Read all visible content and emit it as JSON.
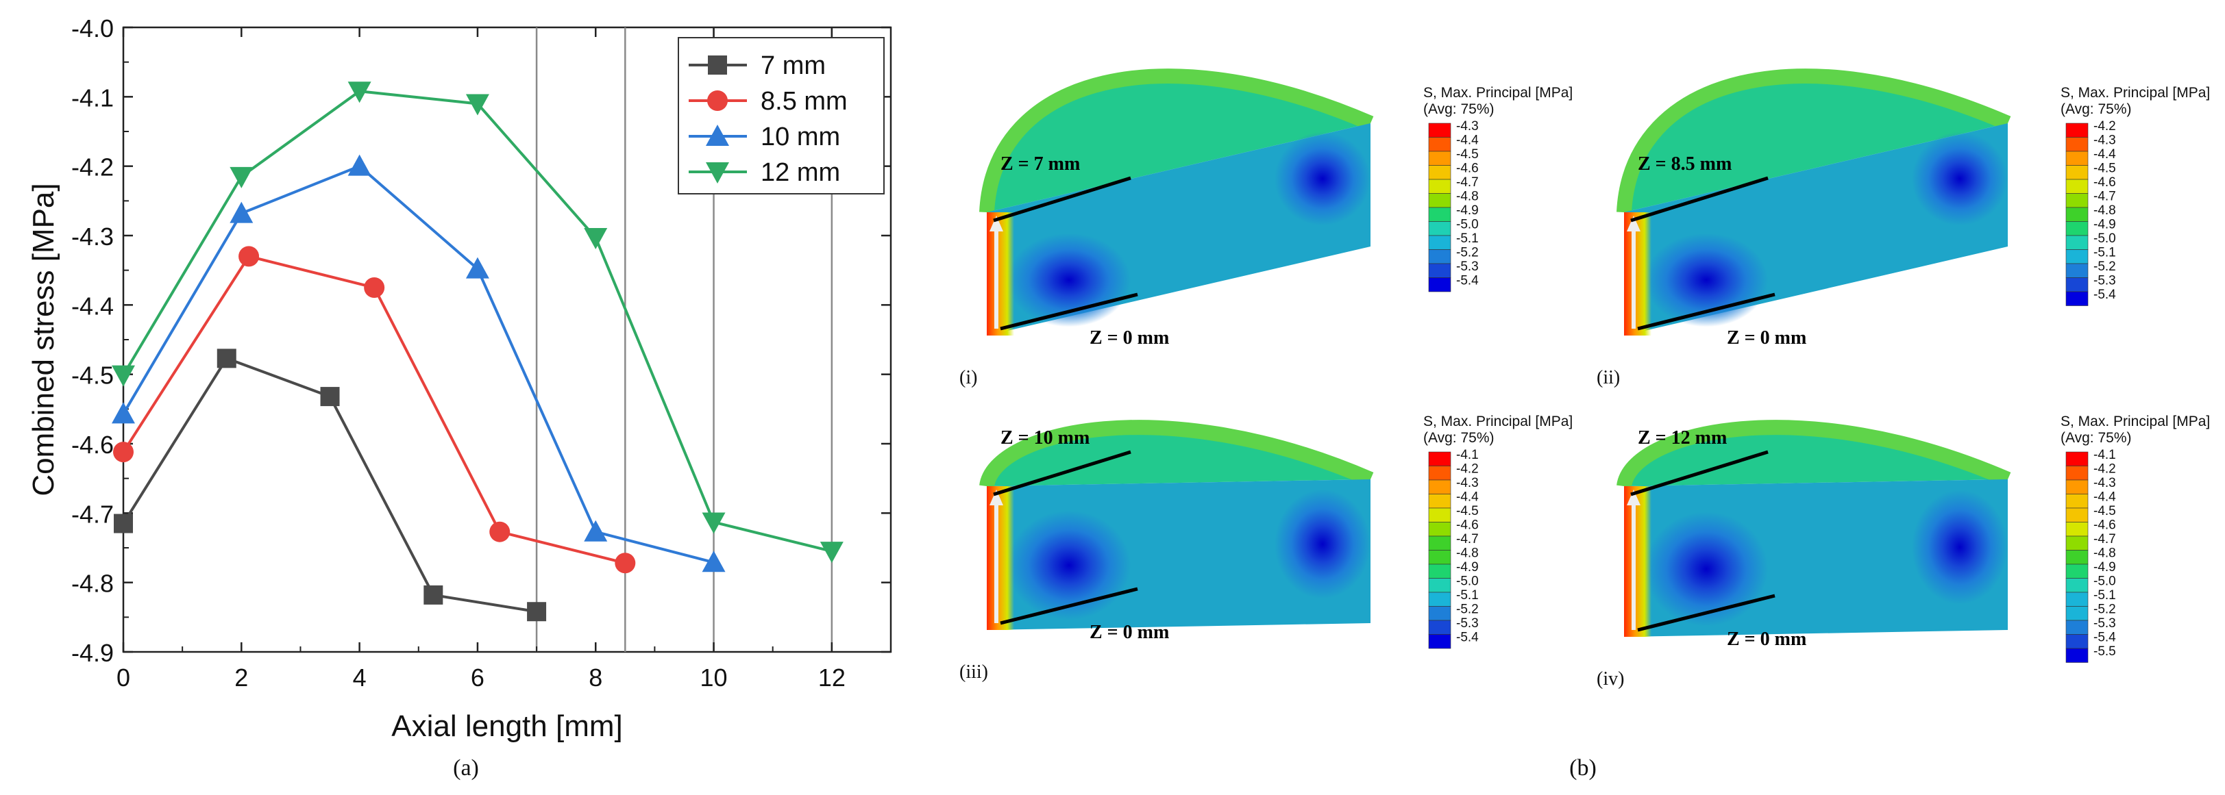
{
  "chart_data": {
    "type": "line",
    "xlabel": "Axial length [mm]",
    "ylabel": "Combined stress [MPa]",
    "xlim": [
      0,
      13
    ],
    "ylim": [
      -4.9,
      -4.0
    ],
    "x_ticks": [
      "0",
      "2",
      "4",
      "6",
      "8",
      "10",
      "12"
    ],
    "y_ticks": [
      "-4.0",
      "-4.1",
      "-4.2",
      "-4.3",
      "-4.4",
      "-4.5",
      "-4.6",
      "-4.7",
      "-4.8",
      "-4.9"
    ],
    "reference_lines_x": [
      7,
      8.5,
      10,
      12
    ],
    "legend_position": "top-right",
    "series": [
      {
        "name": "7 mm",
        "color": "#4a4a4a",
        "marker": "square",
        "x": [
          0,
          1.75,
          3.5,
          5.25,
          7.0
        ],
        "values": [
          -4.715,
          -4.477,
          -4.532,
          -4.818,
          -4.842
        ]
      },
      {
        "name": "8.5 mm",
        "color": "#e8413c",
        "marker": "circle",
        "x": [
          0,
          2.125,
          4.25,
          6.375,
          8.5
        ],
        "values": [
          -4.612,
          -4.33,
          -4.375,
          -4.727,
          -4.772
        ]
      },
      {
        "name": "10 mm",
        "color": "#2f7ad6",
        "marker": "triangle-up",
        "x": [
          0,
          2,
          4,
          6,
          8,
          10
        ],
        "values": [
          -4.557,
          -4.268,
          -4.2,
          -4.348,
          -4.727,
          -4.771
        ]
      },
      {
        "name": "12 mm",
        "color": "#2faa63",
        "marker": "triangle-down",
        "x": [
          0,
          2,
          4,
          6,
          8,
          10,
          12
        ],
        "values": [
          -4.501,
          -4.215,
          -4.092,
          -4.11,
          -4.303,
          -4.713,
          -4.755
        ]
      }
    ],
    "caption": "(a)"
  },
  "figure_b": {
    "caption": "(b)",
    "legend_title_line1": "S, Max. Principal [MPa]",
    "legend_title_line2": "(Avg: 75%)",
    "colors": [
      "#ff0000",
      "#ff5a00",
      "#ff9900",
      "#f5c400",
      "#d6e600",
      "#8fdc00",
      "#3ed12a",
      "#1ed46e",
      "#1fd0b4",
      "#1ab4d8",
      "#1e7fd8",
      "#1747d6",
      "#0000e0"
    ],
    "panels": [
      {
        "label": "(i)",
        "top_mark": "Z = 7 mm",
        "bottom_mark": "Z = 0 mm",
        "scale": [
          "-4.3",
          "-4.4",
          "-4.5",
          "-4.6",
          "-4.7",
          "-4.8",
          "-4.9",
          "-5.0",
          "-5.1",
          "-5.2",
          "-5.3",
          "-5.4"
        ]
      },
      {
        "label": "(ii)",
        "top_mark": "Z = 8.5 mm",
        "bottom_mark": "Z = 0 mm",
        "scale": [
          "-4.2",
          "-4.3",
          "-4.4",
          "-4.5",
          "-4.6",
          "-4.7",
          "-4.8",
          "-4.9",
          "-5.0",
          "-5.1",
          "-5.2",
          "-5.3",
          "-5.4"
        ]
      },
      {
        "label": "(iii)",
        "top_mark": "Z = 10 mm",
        "bottom_mark": "Z = 0 mm",
        "scale": [
          "-4.1",
          "-4.2",
          "-4.3",
          "-4.4",
          "-4.5",
          "-4.6",
          "-4.7",
          "-4.8",
          "-4.9",
          "-5.0",
          "-5.1",
          "-5.2",
          "-5.3",
          "-5.4"
        ]
      },
      {
        "label": "(iv)",
        "top_mark": "Z = 12 mm",
        "bottom_mark": "Z = 0 mm",
        "scale": [
          "-4.1",
          "-4.2",
          "-4.3",
          "-4.4",
          "-4.5",
          "-4.6",
          "-4.7",
          "-4.8",
          "-4.9",
          "-5.0",
          "-5.1",
          "-5.2",
          "-5.3",
          "-5.4",
          "-5.5"
        ]
      }
    ]
  }
}
